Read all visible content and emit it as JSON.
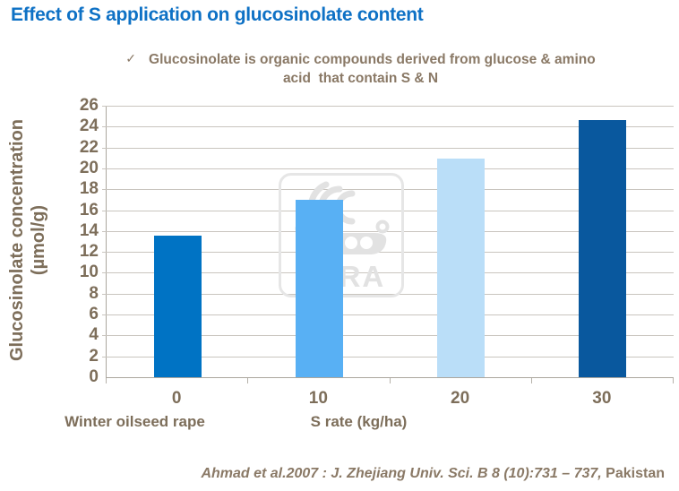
{
  "slide": {
    "title": "Effect of S application on glucosinolate content",
    "subtitle": {
      "bullet_icon": "✓",
      "line1": "Glucosinolate is organic compounds derived from glucose & amino",
      "line2": "acid  that contain S & N"
    },
    "watermark": {
      "brand": "YARA",
      "icon": "viking-ship-logo"
    },
    "footer": {
      "citation_italic": "Ahmad et al.2007 : J. Zhejiang Univ. Sci. B 8 (10):731 – 737,",
      "citation_regular": " Pakistan"
    }
  },
  "chart_data": {
    "type": "bar",
    "title": "Effect of S application on glucosinolate content",
    "categories": [
      "0",
      "10",
      "20",
      "30"
    ],
    "values": [
      13.6,
      17.0,
      20.9,
      24.6
    ],
    "xlabel": "S rate (kg/ha)",
    "ylabel": "Glucosinolate concentration (µmol/g)",
    "ylabel_lines": [
      "Glucosinolate concentration",
      "(µmol/g)"
    ],
    "x_annotation": "Winter oilseed rape",
    "ylim": [
      0,
      26
    ],
    "yticks": [
      0,
      2,
      4,
      6,
      8,
      10,
      12,
      14,
      16,
      18,
      20,
      22,
      24,
      26
    ],
    "grid": true,
    "legend": "none",
    "bar_colors": [
      "#0073c4",
      "#58b0f4",
      "#badef8",
      "#09589e"
    ]
  },
  "colors": {
    "title_blue": "#0e71c5",
    "taupe_text": "#8a7966",
    "axis_text": "#7d6e5a",
    "gridline": "#c9c5bf",
    "axis_line": "#aba69e",
    "watermark_gray": "#e2e2e2"
  }
}
